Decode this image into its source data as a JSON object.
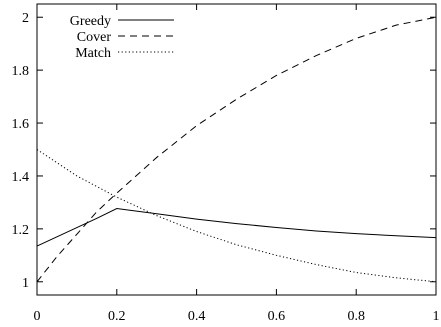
{
  "chart_data": {
    "type": "line",
    "xlim": [
      0,
      1
    ],
    "ylim": [
      0.95,
      2.05
    ],
    "x_ticks": [
      0,
      0.2,
      0.4,
      0.6,
      0.8,
      1
    ],
    "x_tick_labels": [
      "0",
      "0.2",
      "0.4",
      "0.6",
      "0.8",
      "1"
    ],
    "y_ticks": [
      1,
      1.2,
      1.4,
      1.6,
      1.8,
      2
    ],
    "y_tick_labels": [
      "1",
      "1.2",
      "1.4",
      "1.6",
      "1.8",
      "2"
    ],
    "grid": false,
    "legend_position": "top-left",
    "series": [
      {
        "name": "Greedy",
        "style": "solid",
        "x": [
          0,
          0.05,
          0.1,
          0.15,
          0.2,
          0.3,
          0.4,
          0.5,
          0.6,
          0.7,
          0.8,
          0.9,
          1
        ],
        "y": [
          1.135,
          1.17,
          1.205,
          1.24,
          1.277,
          1.257,
          1.237,
          1.22,
          1.205,
          1.192,
          1.182,
          1.174,
          1.167
        ]
      },
      {
        "name": "Cover",
        "style": "dashed",
        "x": [
          0,
          0.05,
          0.1,
          0.15,
          0.2,
          0.3,
          0.4,
          0.5,
          0.6,
          0.7,
          0.8,
          0.9,
          1
        ],
        "y": [
          1.0,
          1.095,
          1.18,
          1.265,
          1.335,
          1.47,
          1.59,
          1.69,
          1.78,
          1.855,
          1.92,
          1.97,
          2.0
        ]
      },
      {
        "name": "Match",
        "style": "dotted",
        "x": [
          0,
          0.05,
          0.1,
          0.15,
          0.2,
          0.3,
          0.4,
          0.5,
          0.6,
          0.7,
          0.8,
          0.9,
          1
        ],
        "y": [
          1.5,
          1.45,
          1.4,
          1.36,
          1.32,
          1.25,
          1.19,
          1.14,
          1.1,
          1.065,
          1.035,
          1.015,
          1.0
        ]
      }
    ]
  }
}
